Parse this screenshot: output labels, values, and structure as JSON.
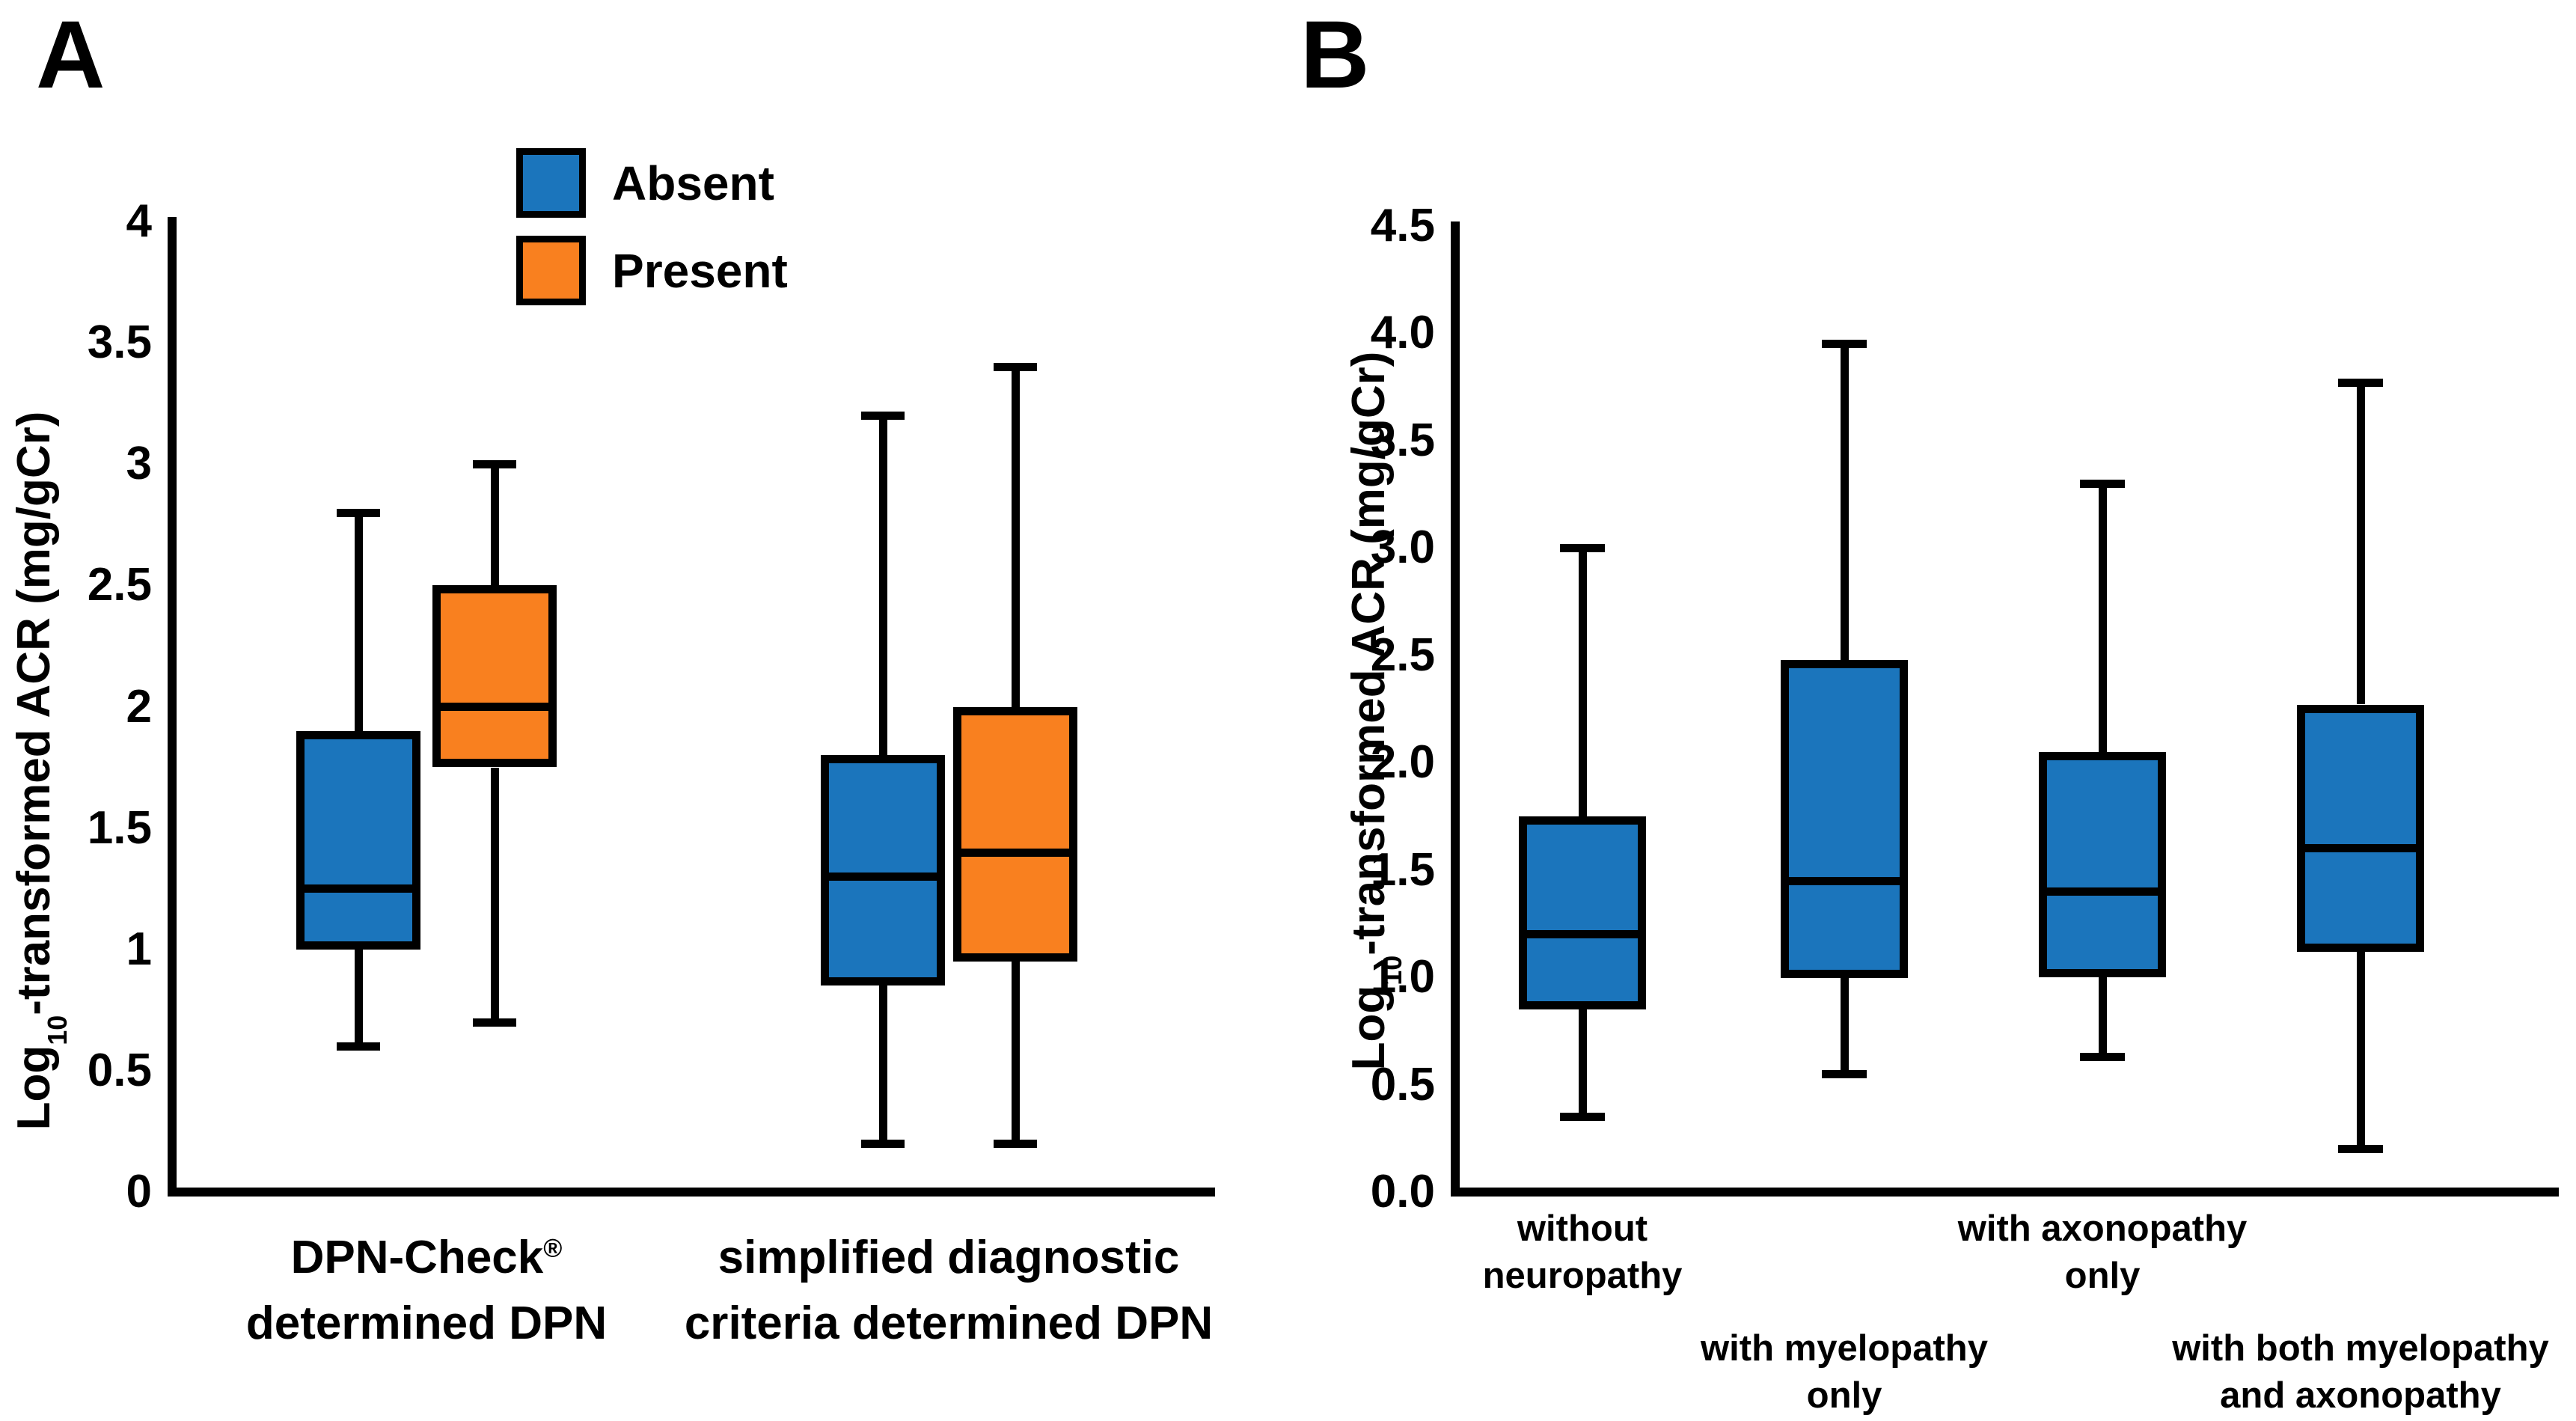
{
  "figure": {
    "background": "#FFFFFF",
    "panel_a": {
      "letter": "A"
    },
    "panel_b": {
      "letter": "B"
    }
  },
  "chart_data": [
    {
      "type": "boxplot",
      "panel": "A",
      "title": "",
      "ylabel": "Log₁₀-transformed ACR (mg/gCr)",
      "ylim": [
        0,
        4
      ],
      "yticks": [
        "4",
        "3.5",
        "3",
        "2.5",
        "2",
        "1.5",
        "1",
        "0.5",
        "0"
      ],
      "grid": false,
      "legend": {
        "position": "top-center-above-plot",
        "entries": [
          {
            "label": "Absent",
            "color": "#1B75BC"
          },
          {
            "label": "Present",
            "color": "#F9801F"
          }
        ]
      },
      "groups": [
        {
          "category": "DPN-Check® determined DPN",
          "category_lines": [
            "DPN-Check®",
            "determined DPN"
          ],
          "boxes": [
            {
              "series": "Absent",
              "color": "#1B75BC",
              "whisker_low": 0.6,
              "q1": 1.0,
              "median": 1.25,
              "q3": 1.9,
              "whisker_high": 2.8
            },
            {
              "series": "Present",
              "color": "#F9801F",
              "whisker_low": 0.7,
              "q1": 1.75,
              "median": 2.0,
              "q3": 2.5,
              "whisker_high": 3.0
            }
          ]
        },
        {
          "category": "simplified diagnostic criteria determined DPN",
          "category_lines": [
            "simplified diagnostic",
            "criteria determined DPN"
          ],
          "boxes": [
            {
              "series": "Absent",
              "color": "#1B75BC",
              "whisker_low": 0.2,
              "q1": 0.85,
              "median": 1.3,
              "q3": 1.8,
              "whisker_high": 3.2
            },
            {
              "series": "Present",
              "color": "#F9801F",
              "whisker_low": 0.2,
              "q1": 0.95,
              "median": 1.4,
              "q3": 2.0,
              "whisker_high": 3.4
            }
          ]
        }
      ]
    },
    {
      "type": "boxplot",
      "panel": "B",
      "title": "",
      "ylabel": "Log₁₀-transformed ACR (mg/gCr)",
      "ylim": [
        0,
        4.5
      ],
      "yticks": [
        "4.5",
        "4.0",
        "3.5",
        "3.0",
        "2.5",
        "2.0",
        "1.5",
        "1.0",
        "0.5",
        "0.0"
      ],
      "grid": false,
      "box_color": "#1B75BC",
      "boxes": [
        {
          "category": "without neuropathy",
          "category_lines": [
            "without",
            "neuropathy"
          ],
          "label_row": "upper",
          "whisker_low": 0.35,
          "q1": 0.85,
          "median": 1.2,
          "q3": 1.75,
          "whisker_high": 3.0
        },
        {
          "category": "with myelopathy only",
          "category_lines": [
            "with myelopathy",
            "only"
          ],
          "label_row": "lower",
          "whisker_low": 0.55,
          "q1": 1.0,
          "median": 1.45,
          "q3": 2.48,
          "whisker_high": 3.95
        },
        {
          "category": "with axonopathy only",
          "category_lines": [
            "with axonopathy",
            "only"
          ],
          "label_row": "upper",
          "whisker_low": 0.63,
          "q1": 1.0,
          "median": 1.4,
          "q3": 2.05,
          "whisker_high": 3.3
        },
        {
          "category": "with both myelopathy and axonopathy",
          "category_lines": [
            "with both myelopathy",
            "and axonopathy"
          ],
          "label_row": "lower",
          "whisker_low": 0.2,
          "q1": 1.12,
          "median": 1.6,
          "q3": 2.27,
          "whisker_high": 3.77
        }
      ]
    }
  ]
}
